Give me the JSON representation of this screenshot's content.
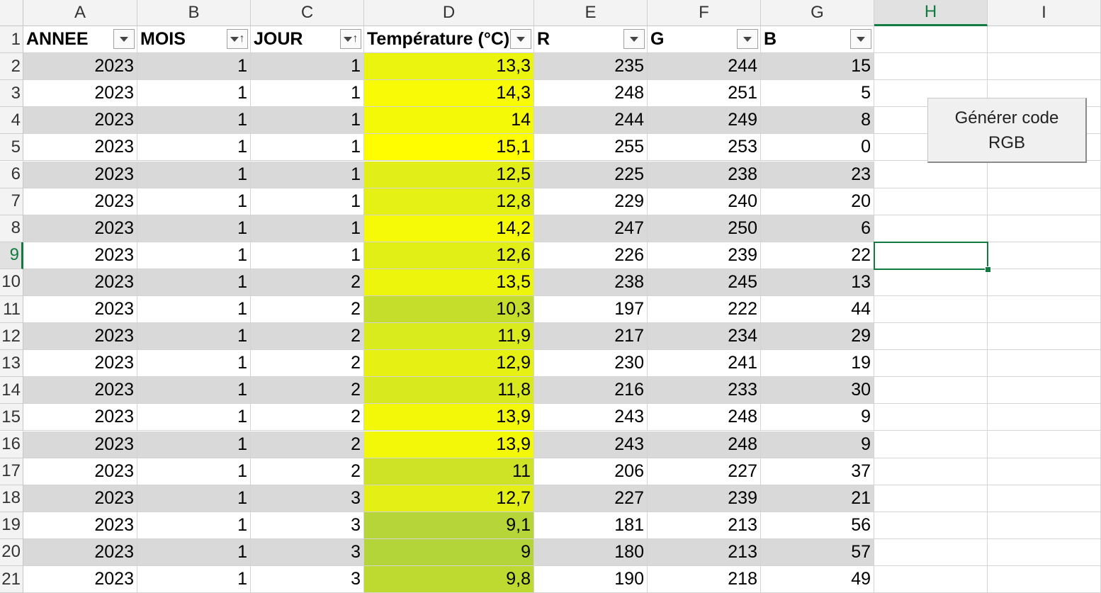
{
  "columns": [
    "A",
    "B",
    "C",
    "D",
    "E",
    "F",
    "G",
    "H",
    "I"
  ],
  "selected_column": "H",
  "selected_row": 9,
  "headers": [
    "ANNEE",
    "MOIS",
    "JOUR",
    "Température (°C)",
    "R",
    "G",
    "B"
  ],
  "header_filter": [
    "filter",
    "sort-asc",
    "sort-asc",
    "filter",
    "filter",
    "filter",
    "filter"
  ],
  "rows": [
    {
      "row": "2",
      "values": [
        "2023",
        "1",
        "1",
        "13,3",
        "235",
        "244",
        "15"
      ],
      "color": "#ebf40f"
    },
    {
      "row": "3",
      "values": [
        "2023",
        "1",
        "1",
        "14,3",
        "248",
        "251",
        "5"
      ],
      "color": "#f8fb05"
    },
    {
      "row": "4",
      "values": [
        "2023",
        "1",
        "1",
        "14",
        "244",
        "249",
        "8"
      ],
      "color": "#f4f908"
    },
    {
      "row": "5",
      "values": [
        "2023",
        "1",
        "1",
        "15,1",
        "255",
        "253",
        "0"
      ],
      "color": "#fffd00"
    },
    {
      "row": "6",
      "values": [
        "2023",
        "1",
        "1",
        "12,5",
        "225",
        "238",
        "23"
      ],
      "color": "#e1ee17"
    },
    {
      "row": "7",
      "values": [
        "2023",
        "1",
        "1",
        "12,8",
        "229",
        "240",
        "20"
      ],
      "color": "#e5f014"
    },
    {
      "row": "8",
      "values": [
        "2023",
        "1",
        "1",
        "14,2",
        "247",
        "250",
        "6"
      ],
      "color": "#f7fa06"
    },
    {
      "row": "9",
      "values": [
        "2023",
        "1",
        "1",
        "12,6",
        "226",
        "239",
        "22"
      ],
      "color": "#e2ef16"
    },
    {
      "row": "10",
      "values": [
        "2023",
        "1",
        "2",
        "13,5",
        "238",
        "245",
        "13"
      ],
      "color": "#eef50d"
    },
    {
      "row": "11",
      "values": [
        "2023",
        "1",
        "2",
        "10,3",
        "197",
        "222",
        "44"
      ],
      "color": "#c5de2c"
    },
    {
      "row": "12",
      "values": [
        "2023",
        "1",
        "2",
        "11,9",
        "217",
        "234",
        "29"
      ],
      "color": "#d9ea1d"
    },
    {
      "row": "13",
      "values": [
        "2023",
        "1",
        "2",
        "12,9",
        "230",
        "241",
        "19"
      ],
      "color": "#e6f113"
    },
    {
      "row": "14",
      "values": [
        "2023",
        "1",
        "2",
        "11,8",
        "216",
        "233",
        "30"
      ],
      "color": "#d8e91e"
    },
    {
      "row": "15",
      "values": [
        "2023",
        "1",
        "2",
        "13,9",
        "243",
        "248",
        "9"
      ],
      "color": "#f3f809"
    },
    {
      "row": "16",
      "values": [
        "2023",
        "1",
        "2",
        "13,9",
        "243",
        "248",
        "9"
      ],
      "color": "#f3f809"
    },
    {
      "row": "17",
      "values": [
        "2023",
        "1",
        "2",
        "11",
        "206",
        "227",
        "37"
      ],
      "color": "#cee325"
    },
    {
      "row": "18",
      "values": [
        "2023",
        "1",
        "3",
        "12,7",
        "227",
        "239",
        "21"
      ],
      "color": "#e3ef15"
    },
    {
      "row": "19",
      "values": [
        "2023",
        "1",
        "3",
        "9,1",
        "181",
        "213",
        "56"
      ],
      "color": "#b5d538"
    },
    {
      "row": "20",
      "values": [
        "2023",
        "1",
        "3",
        "9",
        "180",
        "213",
        "57"
      ],
      "color": "#b4d539"
    },
    {
      "row": "21",
      "values": [
        "2023",
        "1",
        "3",
        "9,8",
        "190",
        "218",
        "49"
      ],
      "color": "#bedA31"
    }
  ],
  "banded_color": "#d9d9d9",
  "accent_color": "#107c41",
  "macro_button": {
    "label_line1": "Générer code",
    "label_line2": "RGB"
  }
}
